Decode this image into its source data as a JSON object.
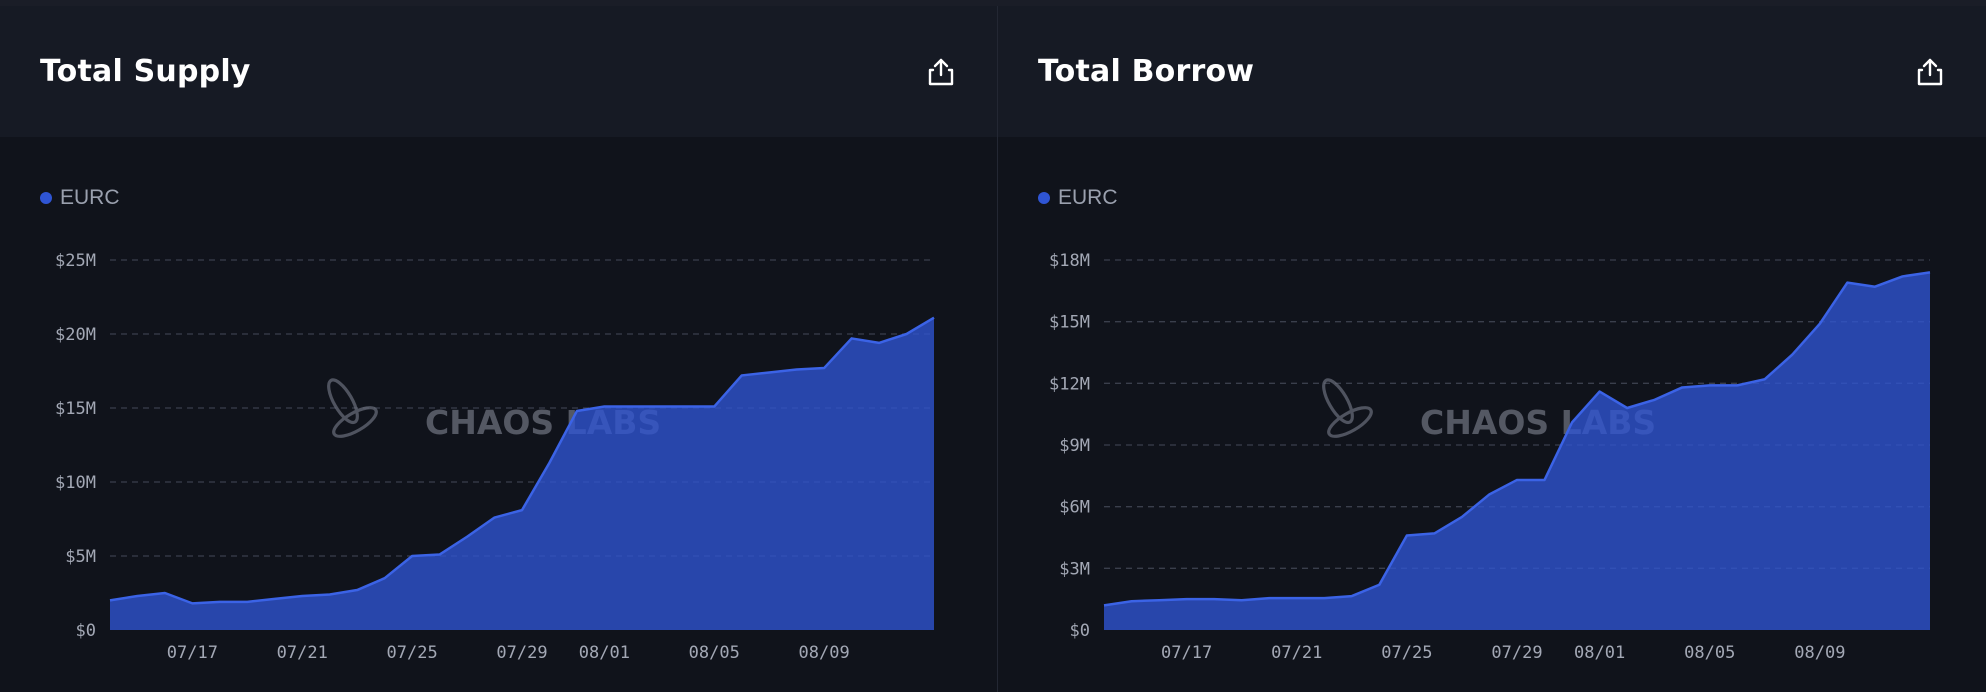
{
  "accent": "#2f55d4",
  "watermark": "CHAOS LABS",
  "panels": [
    {
      "title": "Total Supply",
      "export_icon": "share-upload-icon",
      "chart_data": {
        "type": "area",
        "title": "Total Supply",
        "legend": [
          {
            "name": "EURC",
            "color": "#2f55d4"
          }
        ],
        "legend_position": "top-left",
        "grid": "horizontal-dashed",
        "xlabel": "",
        "ylabel": "",
        "xlim": [
          "2024-07-14",
          "2024-08-13"
        ],
        "ylim": [
          0,
          25000000
        ],
        "yticks": [
          {
            "value": 0,
            "label": "$0"
          },
          {
            "value": 5000000,
            "label": "$5M"
          },
          {
            "value": 10000000,
            "label": "$10M"
          },
          {
            "value": 15000000,
            "label": "$15M"
          },
          {
            "value": 20000000,
            "label": "$20M"
          },
          {
            "value": 25000000,
            "label": "$25M"
          }
        ],
        "xticks": [
          {
            "value": "2024-07-17",
            "label": "07/17"
          },
          {
            "value": "2024-07-21",
            "label": "07/21"
          },
          {
            "value": "2024-07-25",
            "label": "07/25"
          },
          {
            "value": "2024-07-29",
            "label": "07/29"
          },
          {
            "value": "2024-08-01",
            "label": "08/01"
          },
          {
            "value": "2024-08-05",
            "label": "08/05"
          },
          {
            "value": "2024-08-09",
            "label": "08/09"
          }
        ],
        "series": [
          {
            "name": "EURC",
            "color": "#2f55d4",
            "points": [
              [
                "2024-07-14",
                2000000
              ],
              [
                "2024-07-15",
                2300000
              ],
              [
                "2024-07-16",
                2500000
              ],
              [
                "2024-07-17",
                1800000
              ],
              [
                "2024-07-18",
                1900000
              ],
              [
                "2024-07-19",
                1900000
              ],
              [
                "2024-07-20",
                2100000
              ],
              [
                "2024-07-21",
                2300000
              ],
              [
                "2024-07-22",
                2400000
              ],
              [
                "2024-07-23",
                2700000
              ],
              [
                "2024-07-24",
                3500000
              ],
              [
                "2024-07-25",
                5000000
              ],
              [
                "2024-07-26",
                5100000
              ],
              [
                "2024-07-27",
                6300000
              ],
              [
                "2024-07-28",
                7600000
              ],
              [
                "2024-07-29",
                8100000
              ],
              [
                "2024-07-30",
                11300000
              ],
              [
                "2024-07-31",
                14800000
              ],
              [
                "2024-08-01",
                15100000
              ],
              [
                "2024-08-02",
                15100000
              ],
              [
                "2024-08-03",
                15100000
              ],
              [
                "2024-08-04",
                15100000
              ],
              [
                "2024-08-05",
                15100000
              ],
              [
                "2024-08-06",
                17200000
              ],
              [
                "2024-08-07",
                17400000
              ],
              [
                "2024-08-08",
                17600000
              ],
              [
                "2024-08-09",
                17700000
              ],
              [
                "2024-08-10",
                19700000
              ],
              [
                "2024-08-11",
                19400000
              ],
              [
                "2024-08-12",
                20000000
              ],
              [
                "2024-08-13",
                21100000
              ]
            ]
          }
        ]
      }
    },
    {
      "title": "Total Borrow",
      "export_icon": "share-upload-icon",
      "chart_data": {
        "type": "area",
        "title": "Total Borrow",
        "legend": [
          {
            "name": "EURC",
            "color": "#2f55d4"
          }
        ],
        "legend_position": "top-left",
        "grid": "horizontal-dashed",
        "xlabel": "",
        "ylabel": "",
        "xlim": [
          "2024-07-14",
          "2024-08-13"
        ],
        "ylim": [
          0,
          18000000
        ],
        "yticks": [
          {
            "value": 0,
            "label": "$0"
          },
          {
            "value": 3000000,
            "label": "$3M"
          },
          {
            "value": 6000000,
            "label": "$6M"
          },
          {
            "value": 9000000,
            "label": "$9M"
          },
          {
            "value": 12000000,
            "label": "$12M"
          },
          {
            "value": 15000000,
            "label": "$15M"
          },
          {
            "value": 18000000,
            "label": "$18M"
          }
        ],
        "xticks": [
          {
            "value": "2024-07-17",
            "label": "07/17"
          },
          {
            "value": "2024-07-21",
            "label": "07/21"
          },
          {
            "value": "2024-07-25",
            "label": "07/25"
          },
          {
            "value": "2024-07-29",
            "label": "07/29"
          },
          {
            "value": "2024-08-01",
            "label": "08/01"
          },
          {
            "value": "2024-08-05",
            "label": "08/05"
          },
          {
            "value": "2024-08-09",
            "label": "08/09"
          }
        ],
        "series": [
          {
            "name": "EURC",
            "color": "#2f55d4",
            "points": [
              [
                "2024-07-14",
                1200000
              ],
              [
                "2024-07-15",
                1400000
              ],
              [
                "2024-07-16",
                1450000
              ],
              [
                "2024-07-17",
                1500000
              ],
              [
                "2024-07-18",
                1500000
              ],
              [
                "2024-07-19",
                1450000
              ],
              [
                "2024-07-20",
                1550000
              ],
              [
                "2024-07-21",
                1550000
              ],
              [
                "2024-07-22",
                1550000
              ],
              [
                "2024-07-23",
                1650000
              ],
              [
                "2024-07-24",
                2200000
              ],
              [
                "2024-07-25",
                4600000
              ],
              [
                "2024-07-26",
                4700000
              ],
              [
                "2024-07-27",
                5500000
              ],
              [
                "2024-07-28",
                6600000
              ],
              [
                "2024-07-29",
                7300000
              ],
              [
                "2024-07-30",
                7300000
              ],
              [
                "2024-07-31",
                10100000
              ],
              [
                "2024-08-01",
                11600000
              ],
              [
                "2024-08-02",
                10800000
              ],
              [
                "2024-08-03",
                11200000
              ],
              [
                "2024-08-04",
                11800000
              ],
              [
                "2024-08-05",
                11900000
              ],
              [
                "2024-08-06",
                11900000
              ],
              [
                "2024-08-07",
                12200000
              ],
              [
                "2024-08-08",
                13400000
              ],
              [
                "2024-08-09",
                14900000
              ],
              [
                "2024-08-10",
                16900000
              ],
              [
                "2024-08-11",
                16700000
              ],
              [
                "2024-08-12",
                17200000
              ],
              [
                "2024-08-13",
                17400000
              ]
            ]
          }
        ]
      }
    }
  ]
}
